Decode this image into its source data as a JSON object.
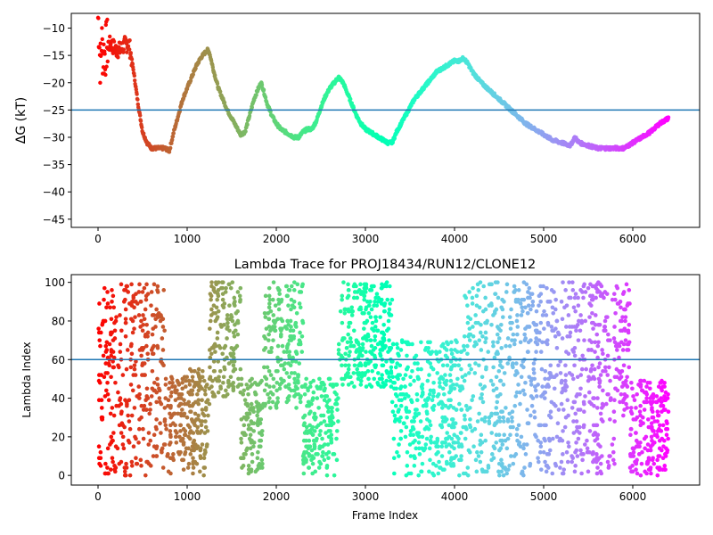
{
  "figure": {
    "background": "#ffffff",
    "colormap": "rainbow",
    "hline_color": "#1f77b4"
  },
  "chart_data": [
    {
      "type": "line",
      "title": "",
      "xlabel": "",
      "ylabel": "ΔG (kT)",
      "xlim": [
        -300,
        6750
      ],
      "ylim": [
        -46.5,
        -7.3
      ],
      "xticks": [
        0,
        1000,
        2000,
        3000,
        4000,
        5000,
        6000
      ],
      "xtick_labels": [
        "0",
        "1000",
        "2000",
        "3000",
        "4000",
        "5000",
        "6000"
      ],
      "yticks": [
        -10,
        -15,
        -20,
        -25,
        -30,
        -35,
        -40,
        -45
      ],
      "ytick_labels": [
        "−10",
        "−15",
        "−20",
        "−25",
        "−30",
        "−35",
        "−40",
        "−45"
      ],
      "hline": -25,
      "color_by": "frame index (rainbow colormap, red at 0 to violet at end)",
      "markers": "small dots",
      "grid": false,
      "series": [
        {
          "x": [
            0,
            10,
            20,
            30,
            40,
            50,
            70,
            100,
            150,
            200,
            250,
            300,
            350,
            400,
            450,
            500,
            550,
            600,
            650,
            700,
            750,
            800,
            850,
            900,
            950,
            1000,
            1050,
            1100,
            1150,
            1200,
            1230,
            1250,
            1300,
            1350,
            1400,
            1450,
            1500,
            1550,
            1600,
            1650,
            1700,
            1750,
            1800,
            1830,
            1850,
            1900,
            1950,
            2000,
            2050,
            2100,
            2150,
            2200,
            2250,
            2300,
            2350,
            2400,
            2450,
            2500,
            2550,
            2600,
            2650,
            2700,
            2750,
            2800,
            2850,
            2900,
            2950,
            3000,
            3050,
            3100,
            3150,
            3200,
            3250,
            3300,
            3350,
            3400,
            3450,
            3500,
            3550,
            3600,
            3650,
            3700,
            3750,
            3800,
            3850,
            3900,
            3950,
            4000,
            4050,
            4100,
            4150,
            4200,
            4300,
            4400,
            4500,
            4600,
            4700,
            4800,
            4900,
            5000,
            5100,
            5200,
            5300,
            5350,
            5400,
            5500,
            5600,
            5700,
            5800,
            5900,
            5950,
            6000,
            6100,
            6200,
            6300,
            6400
          ],
          "y": [
            -8,
            -10,
            -15,
            -17,
            -12,
            -14,
            -15,
            -13,
            -13,
            -14,
            -14,
            -13,
            -13,
            -18,
            -24,
            -29,
            -31,
            -32,
            -32,
            -32,
            -32,
            -32.5,
            -29,
            -26,
            -23,
            -21,
            -19,
            -17,
            -15.5,
            -14.5,
            -14,
            -14.5,
            -18,
            -21,
            -23,
            -25,
            -26.5,
            -28,
            -29.5,
            -29,
            -26,
            -23,
            -21,
            -20,
            -21,
            -24,
            -26,
            -27.5,
            -28.5,
            -29,
            -29.5,
            -30,
            -30,
            -29,
            -28.5,
            -28.5,
            -27,
            -24.5,
            -22.5,
            -21,
            -20,
            -19,
            -20,
            -22,
            -24,
            -26,
            -27.5,
            -28.5,
            -29,
            -29.5,
            -30,
            -30.5,
            -31,
            -31,
            -29,
            -27.5,
            -26,
            -24.5,
            -23,
            -22,
            -21,
            -20,
            -19,
            -18,
            -17.5,
            -17,
            -16.5,
            -16,
            -16,
            -15.5,
            -16.5,
            -18,
            -20,
            -21.5,
            -23,
            -24.5,
            -26,
            -27.5,
            -28.5,
            -29.5,
            -30.5,
            -31,
            -31.5,
            -30,
            -31,
            -31.5,
            -32,
            -32,
            -32,
            -32,
            -31.5,
            -31,
            -30,
            -29,
            -27.5,
            -26.5
          ]
        }
      ]
    },
    {
      "type": "scatter",
      "title": "Lambda Trace for PROJ18434/RUN12/CLONE12",
      "xlabel": "Frame Index",
      "ylabel": "Lambda Index",
      "xlim": [
        -300,
        6750
      ],
      "ylim": [
        -5,
        104
      ],
      "xticks": [
        0,
        1000,
        2000,
        3000,
        4000,
        5000,
        6000
      ],
      "xtick_labels": [
        "0",
        "1000",
        "2000",
        "3000",
        "4000",
        "5000",
        "6000"
      ],
      "yticks": [
        0,
        20,
        40,
        60,
        80,
        100
      ],
      "ytick_labels": [
        "0",
        "20",
        "40",
        "60",
        "80",
        "100"
      ],
      "hline": 60,
      "color_by": "frame index (rainbow colormap, red at 0 to violet at end)",
      "grid": false,
      "series": [
        {
          "description": "dense point cloud (thousands of points), lambda in 0-100; piecewise vertical bands sweeping up and down over frames",
          "regions": [
            {
              "x_range": [
                0,
                120
              ],
              "y_range": [
                0,
                100
              ]
            },
            {
              "x_range": [
                120,
                380
              ],
              "y_range": [
                0,
                100
              ]
            },
            {
              "x_range": [
                380,
                750
              ],
              "y_range": [
                0,
                100
              ]
            },
            {
              "x_range": [
                750,
                1250
              ],
              "y_range": [
                0,
                55
              ]
            },
            {
              "x_range": [
                1250,
                1600
              ],
              "y_range": [
                40,
                100
              ]
            },
            {
              "x_range": [
                1600,
                1850
              ],
              "y_range": [
                0,
                50
              ]
            },
            {
              "x_range": [
                1850,
                2300
              ],
              "y_range": [
                35,
                100
              ]
            },
            {
              "x_range": [
                2300,
                2700
              ],
              "y_range": [
                0,
                50
              ]
            },
            {
              "x_range": [
                2700,
                3300
              ],
              "y_range": [
                45,
                100
              ]
            },
            {
              "x_range": [
                3300,
                4100
              ],
              "y_range": [
                0,
                70
              ]
            },
            {
              "x_range": [
                4100,
                5800
              ],
              "y_range": [
                0,
                100
              ]
            },
            {
              "x_range": [
                5800,
                5970
              ],
              "y_range": [
                30,
                100
              ]
            },
            {
              "x_range": [
                5970,
                6400
              ],
              "y_range": [
                0,
                50
              ]
            }
          ]
        }
      ]
    }
  ]
}
